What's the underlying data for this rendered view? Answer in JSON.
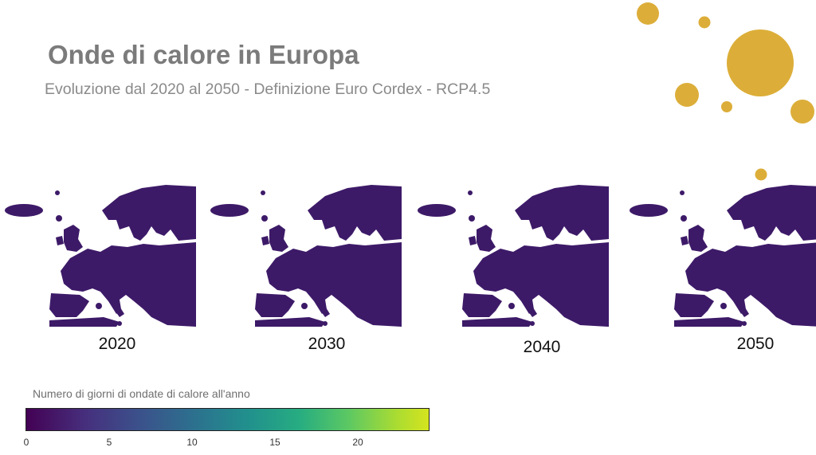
{
  "title": "Onde di calore in Europa",
  "subtitle": "Evoluzione dal 2020 al 2050 - Definizione Euro Cordex - RCP4.5",
  "maps": [
    {
      "year": "2020"
    },
    {
      "year": "2030"
    },
    {
      "year": "2040"
    },
    {
      "year": "2050"
    }
  ],
  "legend": {
    "title": "Numero di giorni di ondate di calore all'anno",
    "ticks": [
      "0",
      "5",
      "10",
      "15",
      "20"
    ],
    "range": [
      0,
      24
    ],
    "colormap": [
      "#440154",
      "#46307e",
      "#3b518b",
      "#2c718e",
      "#21908d",
      "#27ad81",
      "#5cc863",
      "#aadc32",
      "#d5e41e"
    ]
  },
  "colors": {
    "accent": "#dcae39",
    "title": "#7b7b7b",
    "map_base": "#3d1a68"
  }
}
